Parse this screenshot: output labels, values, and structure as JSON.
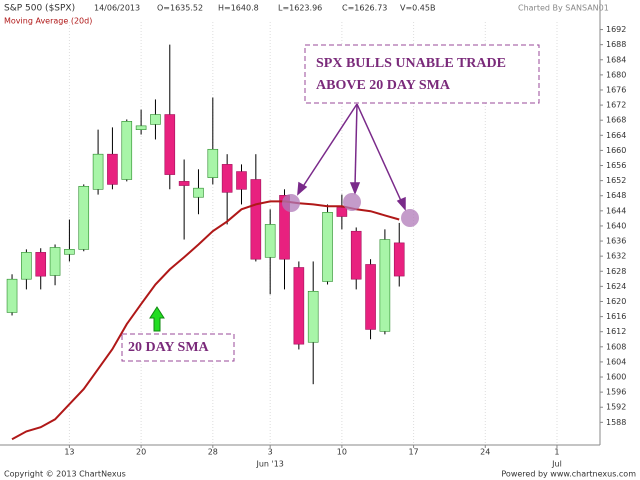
{
  "chart_data": {
    "type": "candlestick",
    "title": "S&P 500 ($SPX)",
    "header": [
      "14/06/2013",
      "O=1635.52",
      "H=1640.8",
      "L=1623.96",
      "C=1626.73",
      "V=0.45B"
    ],
    "credit": "Charted By SANSAN01",
    "indicator_label": "Moving Average (20d)",
    "footer_left": "Copyright © 2013 ChartNexus",
    "footer_right": "Powered by www.chartnexus.com",
    "annotations": [
      "SPX BULLS UNABLE TRADE",
      "ABOVE 20 DAY SMA",
      "20 DAY SMA"
    ],
    "x": [
      0,
      1,
      2,
      3,
      4,
      5,
      6,
      7,
      8,
      9,
      10,
      11,
      12,
      13,
      14,
      15,
      16,
      17,
      18,
      19,
      20,
      21,
      22,
      23,
      24,
      25,
      26,
      27
    ],
    "open": [
      1617.1,
      1625.9,
      1633.0,
      1626.9,
      1632.5,
      1633.8,
      1649.7,
      1659.0,
      1652.3,
      1665.5,
      1666.9,
      1669.5,
      1651.8,
      1647.6,
      1652.8,
      1656.3,
      1654.4,
      1652.3,
      1631.7,
      1648.1,
      1629.0,
      1609.2,
      1625.3,
      1644.9,
      1638.6,
      1629.8,
      1612.1,
      1635.52
    ],
    "high": [
      1627.2,
      1633.8,
      1634.1,
      1635.1,
      1641.7,
      1651.0,
      1665.5,
      1666.1,
      1668.2,
      1670.8,
      1673.5,
      1688.0,
      1657.6,
      1655.0,
      1674.0,
      1659.0,
      1656.3,
      1659.0,
      1644.4,
      1649.7,
      1630.6,
      1630.6,
      1645.7,
      1648.3,
      1639.6,
      1631.2,
      1639.1,
      1640.8
    ],
    "low": [
      1616.3,
      1623.2,
      1623.2,
      1624.3,
      1630.6,
      1633.3,
      1648.3,
      1649.7,
      1651.8,
      1664.2,
      1662.9,
      1649.7,
      1636.4,
      1643.1,
      1651.0,
      1640.4,
      1645.7,
      1630.6,
      1621.9,
      1623.2,
      1607.3,
      1598.1,
      1624.5,
      1639.1,
      1623.2,
      1610.0,
      1611.3,
      1623.96
    ],
    "close": [
      1625.9,
      1633.0,
      1626.7,
      1634.3,
      1633.8,
      1650.5,
      1659.0,
      1651.0,
      1667.7,
      1666.5,
      1669.5,
      1653.6,
      1650.7,
      1650.0,
      1660.3,
      1648.9,
      1649.7,
      1631.2,
      1640.4,
      1631.2,
      1608.7,
      1622.7,
      1643.6,
      1642.5,
      1625.9,
      1612.6,
      1636.4,
      1626.73
    ],
    "up_color": "#a8f5a8",
    "down_color": "#e8217f",
    "series": [
      {
        "name": "Moving Average (20d)",
        "color": "#b01818",
        "values": [
          1583.5,
          1585.6,
          1586.7,
          1588.8,
          1592.8,
          1596.8,
          1602.1,
          1607.4,
          1614.0,
          1619.3,
          1624.5,
          1628.5,
          1631.7,
          1635.1,
          1638.6,
          1641.2,
          1644.4,
          1645.7,
          1646.5,
          1646.5,
          1646.0,
          1645.7,
          1645.2,
          1645.2,
          1644.4,
          1643.9,
          1642.8,
          1641.7
        ]
      }
    ],
    "xlim": [
      -0.84,
      41
    ],
    "xticks": [
      {
        "value": 4,
        "label": "13"
      },
      {
        "value": 9,
        "label": "20"
      },
      {
        "value": 14,
        "label": "28"
      },
      {
        "value": 18,
        "label": "3"
      },
      {
        "value": 23,
        "label": "10"
      },
      {
        "value": 28,
        "label": "17"
      },
      {
        "value": 33,
        "label": "24"
      },
      {
        "value": 38,
        "label": "1"
      }
    ],
    "month_ticks": [
      {
        "value": 18,
        "label": "Jun '13"
      },
      {
        "value": 38,
        "label": "Jul"
      }
    ],
    "ylim": [
      1582,
      1694
    ],
    "yticks": [
      1588,
      1592,
      1596,
      1600,
      1604,
      1608,
      1612,
      1616,
      1620,
      1624,
      1628,
      1632,
      1636,
      1640,
      1644,
      1648,
      1652,
      1656,
      1660,
      1664,
      1668,
      1672,
      1676,
      1680,
      1684,
      1688,
      1692
    ],
    "grid": true
  }
}
